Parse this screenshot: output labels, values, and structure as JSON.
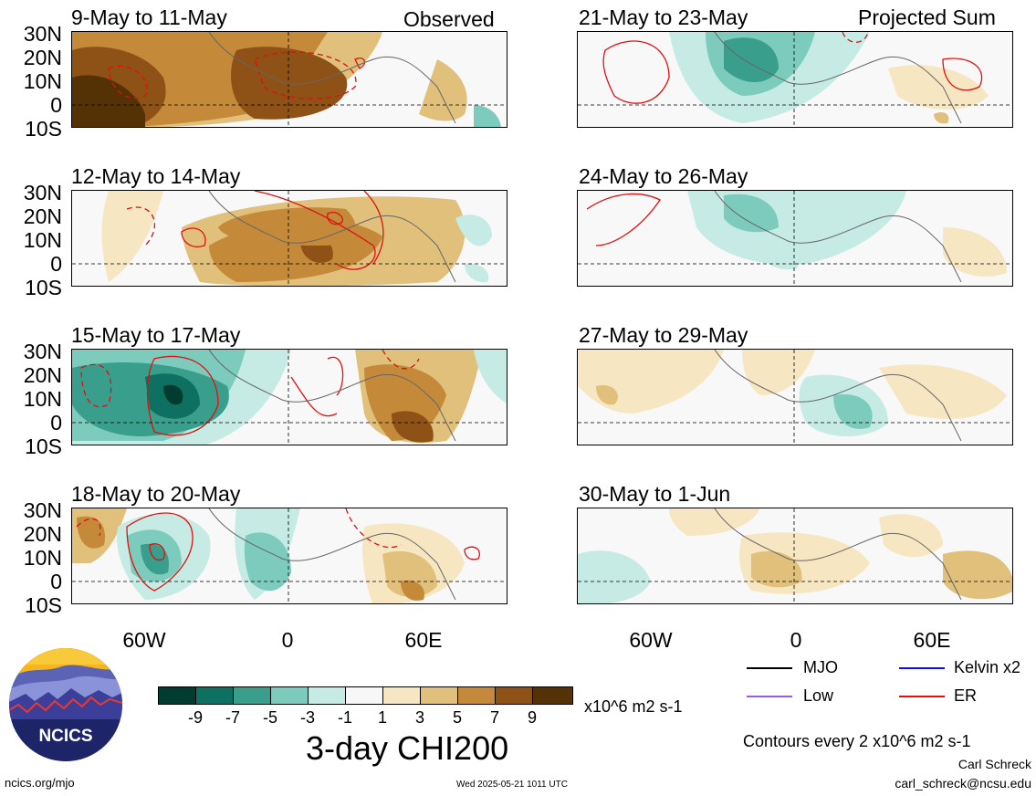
{
  "headers": {
    "observed": "Observed",
    "projected": "Projected Sum"
  },
  "panels": {
    "left": [
      {
        "title": "9-May to 11-May"
      },
      {
        "title": "12-May to 14-May"
      },
      {
        "title": "15-May to 17-May"
      },
      {
        "title": "18-May to 20-May"
      }
    ],
    "right": [
      {
        "title": "21-May to 23-May"
      },
      {
        "title": "24-May to 26-May"
      },
      {
        "title": "27-May to 29-May"
      },
      {
        "title": "30-May to 1-Jun"
      }
    ]
  },
  "lat_labels": [
    "30N",
    "20N",
    "10N",
    "0",
    "10S"
  ],
  "lon_labels": [
    "60W",
    "0",
    "60E"
  ],
  "colorbar": {
    "colors": [
      "#013c30",
      "#0d7060",
      "#3a9e8c",
      "#7ccbbc",
      "#c6ebe4",
      "#f7f7f7",
      "#f6e7c2",
      "#e0c07a",
      "#c48a3a",
      "#8e5216",
      "#553206"
    ],
    "labels": [
      "-9",
      "-7",
      "-5",
      "-3",
      "-1",
      "1",
      "3",
      "5",
      "7",
      "9"
    ],
    "units": "x10^6 m2 s-1",
    "name": "3-day CHI200"
  },
  "legend": [
    {
      "label": "MJO",
      "color": "#000000"
    },
    {
      "label": "Kelvin x2",
      "color": "#1010e0"
    },
    {
      "label": "Low",
      "color": "#9c5cd6"
    },
    {
      "label": "ER",
      "color": "#e01010"
    }
  ],
  "contour_note": "Contours every 2 x10^6 m2 s-1",
  "author": "Carl Schreck",
  "email": "carl_schreck@ncsu.edu",
  "website": "ncics.org/mjo",
  "timestamp": "Wed 2025-05-21 1011 UTC",
  "logo": {
    "text": "NCICS"
  }
}
